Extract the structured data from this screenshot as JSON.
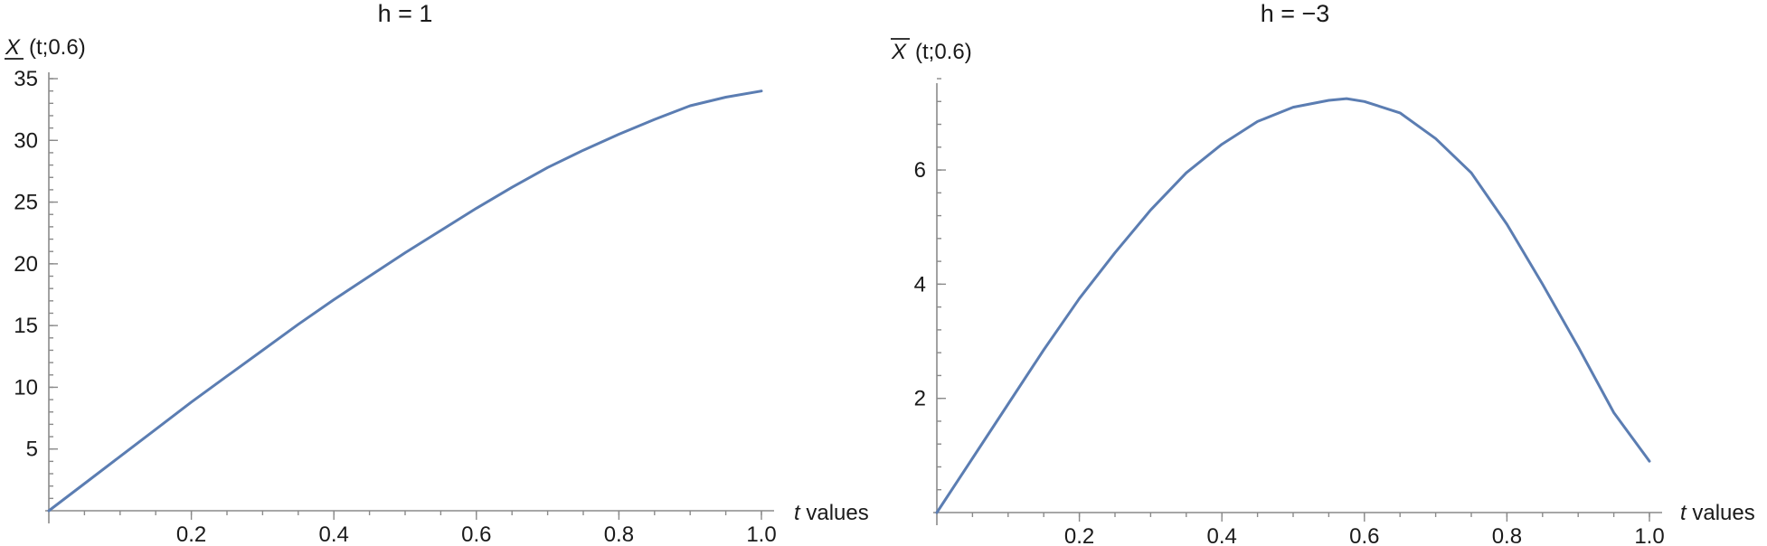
{
  "colors": {
    "curve": "#5b7db2"
  },
  "chart_data": [
    {
      "type": "line",
      "title": "h = 1",
      "ylabel_sym": "X",
      "ylabel_bar": "under",
      "ylabel_args": "(t;0.6)",
      "xlabel_var": "t",
      "xlabel_text": " values",
      "xlim": [
        0,
        1.0
      ],
      "ylim": [
        0,
        35
      ],
      "xticks": [
        0.2,
        0.4,
        0.6,
        0.8,
        1.0
      ],
      "xtick_labels": [
        "0.2",
        "0.4",
        "0.6",
        "0.8",
        "1.0"
      ],
      "yticks": [
        5,
        10,
        15,
        20,
        25,
        30,
        35
      ],
      "ytick_labels": [
        "5",
        "10",
        "15",
        "20",
        "25",
        "30",
        "35"
      ],
      "series": [
        {
          "x": [
            0,
            0.05,
            0.1,
            0.15,
            0.2,
            0.25,
            0.3,
            0.35,
            0.4,
            0.45,
            0.5,
            0.55,
            0.6,
            0.65,
            0.7,
            0.75,
            0.8,
            0.85,
            0.9,
            0.95,
            1.0
          ],
          "y": [
            0,
            2.2,
            4.4,
            6.6,
            8.8,
            10.9,
            13.0,
            15.1,
            17.1,
            19.0,
            20.9,
            22.7,
            24.5,
            26.2,
            27.8,
            29.2,
            30.5,
            31.7,
            32.8,
            33.5,
            34.0
          ]
        }
      ]
    },
    {
      "type": "line",
      "title": "h = −3",
      "ylabel_sym": "X",
      "ylabel_bar": "over",
      "ylabel_args": "(t;0.6)",
      "xlabel_var": "t",
      "xlabel_text": " values",
      "xlim": [
        0,
        1.0
      ],
      "ylim": [
        0,
        7.6
      ],
      "xticks": [
        0.2,
        0.4,
        0.6,
        0.8,
        1.0
      ],
      "xtick_labels": [
        "0.2",
        "0.4",
        "0.6",
        "0.8",
        "1.0"
      ],
      "yticks": [
        2,
        4,
        6
      ],
      "ytick_labels": [
        "2",
        "4",
        "6"
      ],
      "series": [
        {
          "x": [
            0,
            0.05,
            0.1,
            0.15,
            0.2,
            0.25,
            0.3,
            0.35,
            0.4,
            0.45,
            0.5,
            0.55,
            0.575,
            0.6,
            0.65,
            0.7,
            0.75,
            0.8,
            0.85,
            0.9,
            0.95,
            1.0
          ],
          "y": [
            0,
            0.95,
            1.9,
            2.85,
            3.75,
            4.55,
            5.3,
            5.95,
            6.45,
            6.85,
            7.1,
            7.22,
            7.25,
            7.2,
            7.0,
            6.55,
            5.95,
            5.05,
            4.0,
            2.9,
            1.75,
            0.9
          ]
        }
      ]
    }
  ]
}
